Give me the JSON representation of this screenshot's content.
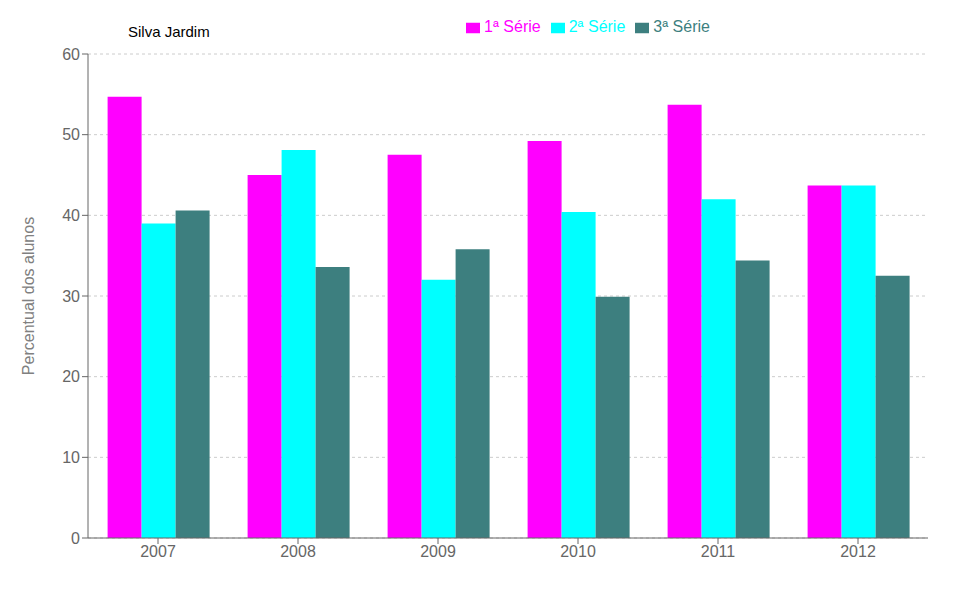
{
  "chart_data": {
    "type": "bar",
    "title": "Silva Jardim",
    "categories": [
      "2007",
      "2008",
      "2009",
      "2010",
      "2011",
      "2012"
    ],
    "series": [
      {
        "name": "1ª Série",
        "color": "#FF00FF",
        "values": [
          54.7,
          45.0,
          47.5,
          49.2,
          53.7,
          43.7
        ]
      },
      {
        "name": "2ª Série",
        "color": "#00FFFF",
        "values": [
          39.0,
          48.1,
          32.0,
          40.4,
          42.0,
          43.7
        ]
      },
      {
        "name": "3ª Série",
        "color": "#3D7F7F",
        "values": [
          40.6,
          33.6,
          35.8,
          29.9,
          34.4,
          32.5
        ]
      }
    ],
    "ylabel": "Percentual dos alunos",
    "ylim": [
      0,
      60
    ],
    "yticks": [
      0,
      10,
      20,
      30,
      40,
      50,
      60
    ],
    "grid": true
  }
}
